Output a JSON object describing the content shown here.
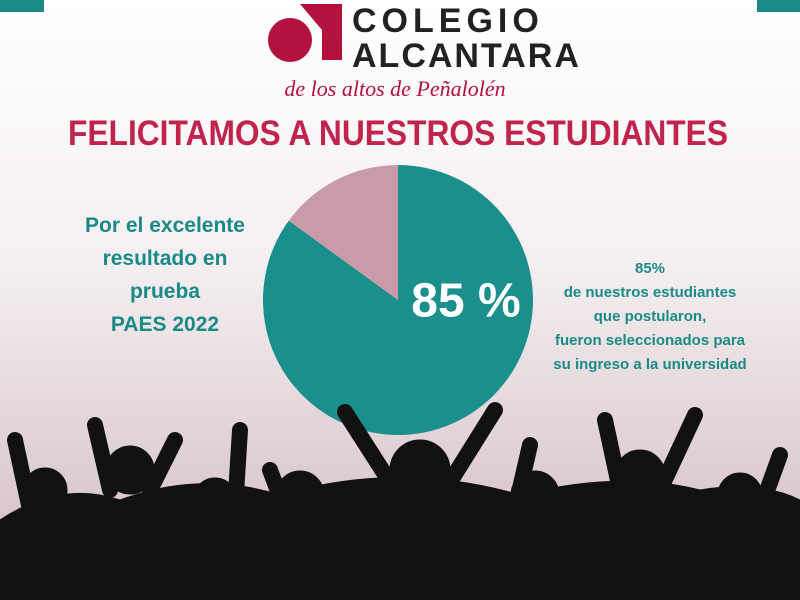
{
  "header": {
    "logo_line1": "COLEGIO",
    "logo_line2": "ALCANTARA",
    "tagline": "de los altos de Peñalolén"
  },
  "headline": "FELICITAMOS A NUESTROS ESTUDIANTES",
  "left_text": [
    "Por el excelente",
    "resultado en",
    "prueba",
    "PAES 2022"
  ],
  "right_text": [
    "85%",
    "de nuestros estudiantes",
    "que postularon,",
    "fueron seleccionados para",
    "su ingreso a la universidad"
  ],
  "chart_data": {
    "type": "pie",
    "values": [
      85,
      15
    ],
    "value_labels": [
      "85 %",
      null
    ],
    "colors": [
      "#1a8f8c",
      "#c99aa7"
    ]
  }
}
